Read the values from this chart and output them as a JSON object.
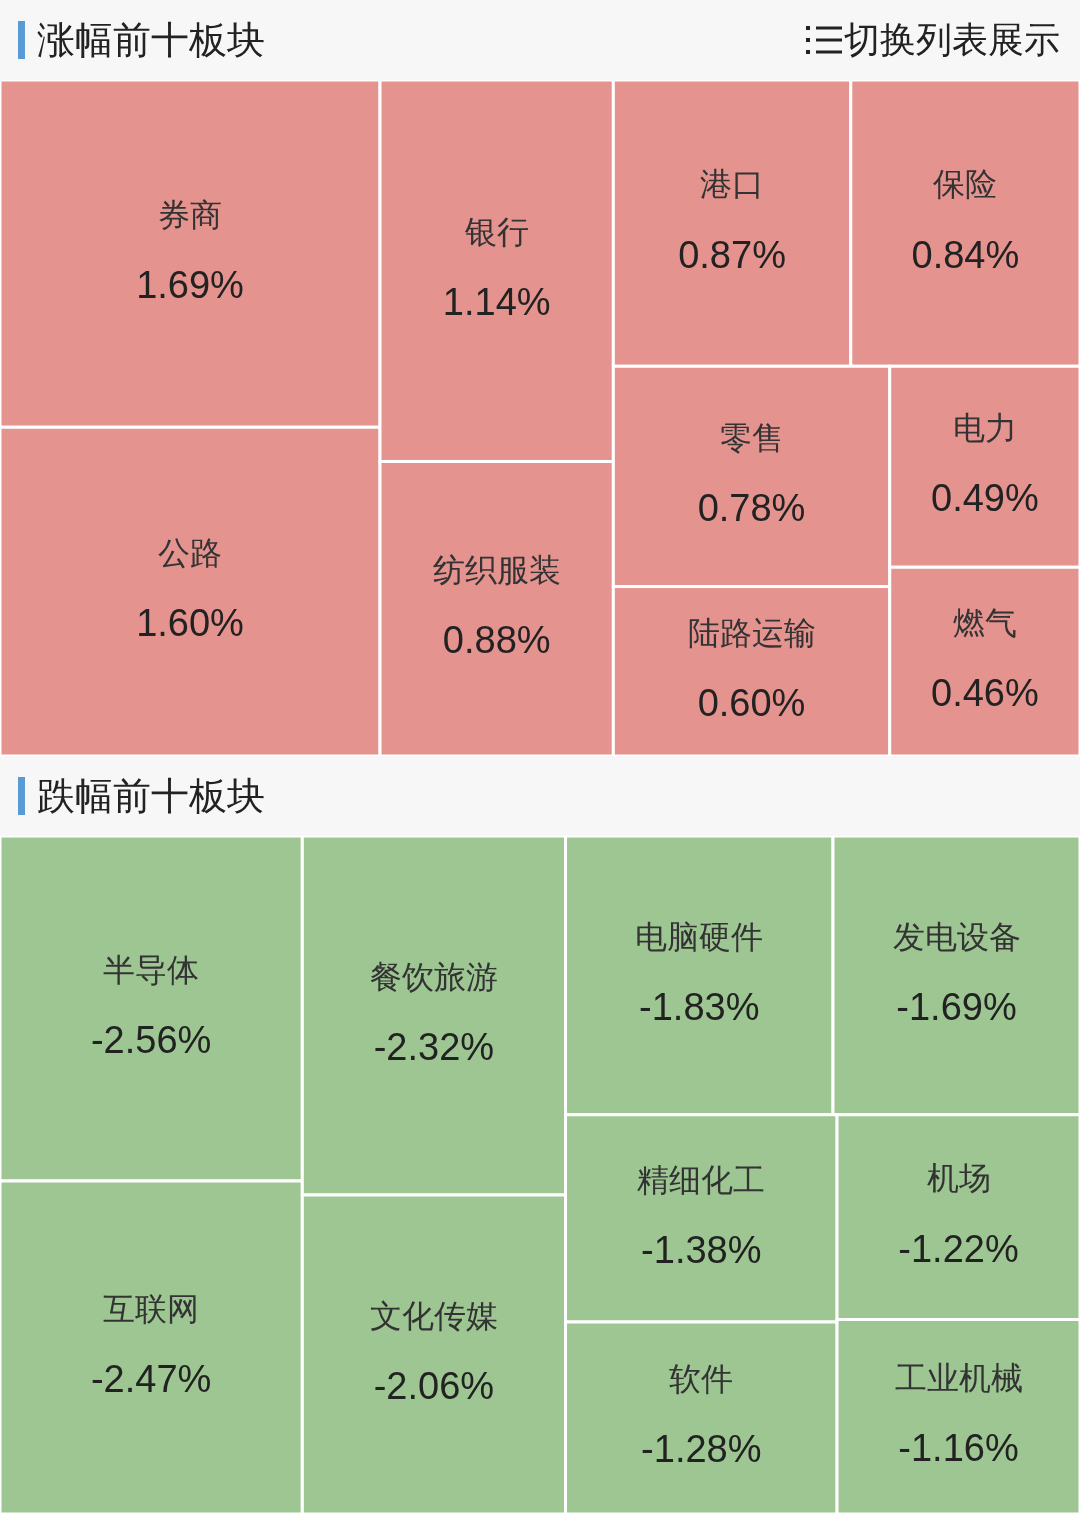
{
  "chart_data": [
    {
      "type": "other",
      "title": "涨幅前十板块",
      "annotations": [
        "切换列表展示"
      ],
      "color": "#e4938f",
      "categories": [
        "券商",
        "公路",
        "银行",
        "纺织服装",
        "港口",
        "保险",
        "零售",
        "陆路运输",
        "电力",
        "燃气"
      ],
      "values": [
        1.69,
        1.6,
        1.14,
        0.88,
        0.87,
        0.84,
        0.78,
        0.6,
        0.49,
        0.46
      ],
      "value_labels": [
        "1.69%",
        "1.60%",
        "1.14%",
        "0.88%",
        "0.87%",
        "0.84%",
        "0.78%",
        "0.60%",
        "0.49%",
        "0.46%"
      ]
    },
    {
      "type": "other",
      "title": "跌幅前十板块",
      "color": "#9dc693",
      "categories": [
        "半导体",
        "互联网",
        "餐饮旅游",
        "文化传媒",
        "电脑硬件",
        "发电设备",
        "精细化工",
        "软件",
        "机场",
        "工业机械"
      ],
      "values": [
        -2.56,
        -2.47,
        -2.32,
        -2.06,
        -1.83,
        -1.69,
        -1.38,
        -1.28,
        -1.22,
        -1.16
      ],
      "value_labels": [
        "-2.56%",
        "-2.47%",
        "-2.32%",
        "-2.06%",
        "-1.83%",
        "-1.69%",
        "-1.38%",
        "-1.28%",
        "-1.22%",
        "-1.16%"
      ]
    }
  ]
}
